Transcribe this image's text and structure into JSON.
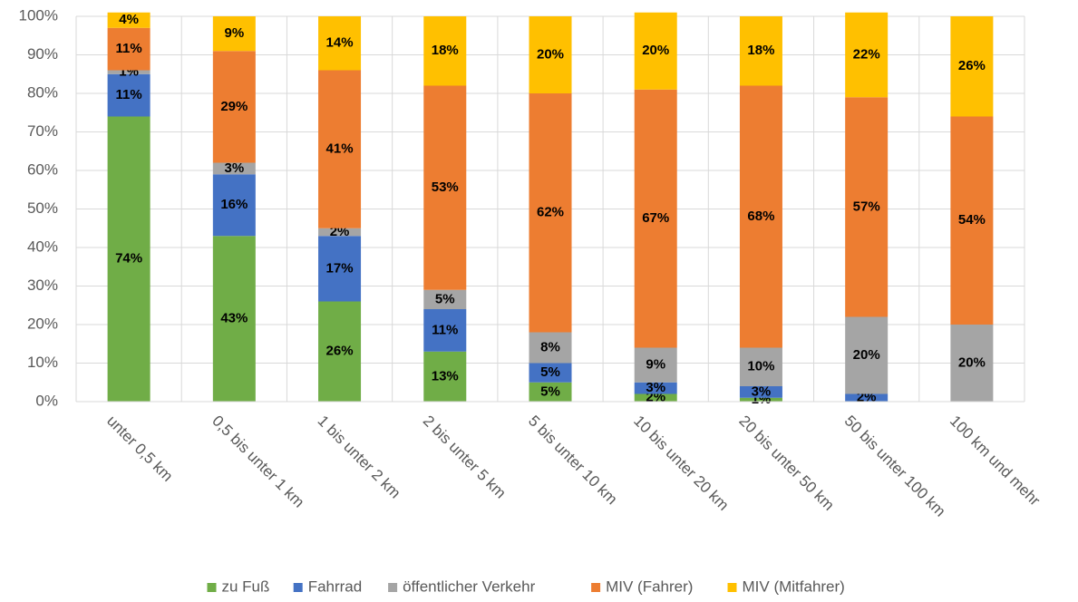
{
  "chart_data": {
    "type": "stacked_bar",
    "categories": [
      "unter 0,5 km",
      "0,5 bis unter 1 km",
      "1 bis unter 2 km",
      "2 bis unter 5 km",
      "5 bis unter 10 km",
      "10 bis unter 20 km",
      "20 bis unter 50 km",
      "50 bis unter 100 km",
      "100 km und mehr"
    ],
    "series": [
      {
        "name": "zu Fuß",
        "color": "#70ad47",
        "values": [
          74,
          43,
          26,
          13,
          5,
          2,
          1,
          null,
          null
        ],
        "value_labels": [
          "74%",
          "43%",
          "26%",
          "13%",
          "5%",
          "2%",
          "1%",
          null,
          null
        ]
      },
      {
        "name": "Fahrrad",
        "color": "#4472c4",
        "values": [
          11,
          16,
          17,
          11,
          5,
          3,
          3,
          2,
          null
        ],
        "value_labels": [
          "11%",
          "16%",
          "17%",
          "11%",
          "5%",
          "3%",
          "3%",
          "2%",
          null
        ]
      },
      {
        "name": "öffentlicher Verkehr",
        "color": "#a5a5a5",
        "values": [
          1,
          3,
          2,
          5,
          8,
          9,
          10,
          20,
          20
        ],
        "value_labels": [
          "1%",
          "3%",
          "2%",
          "5%",
          "8%",
          "9%",
          "10%",
          "20%",
          "20%"
        ]
      },
      {
        "name": "MIV (Fahrer)",
        "color": "#ed7d31",
        "values": [
          11,
          29,
          41,
          53,
          62,
          67,
          68,
          57,
          54
        ],
        "value_labels": [
          "11%",
          "29%",
          "41%",
          "53%",
          "62%",
          "67%",
          "68%",
          "57%",
          "54%"
        ]
      },
      {
        "name": "MIV (Mitfahrer)",
        "color": "#ffc000",
        "values": [
          4,
          9,
          14,
          18,
          20,
          20,
          18,
          22,
          26
        ],
        "value_labels": [
          "4%",
          "9%",
          "14%",
          "18%",
          "20%",
          "20%",
          "18%",
          "22%",
          "26%"
        ]
      }
    ],
    "ylim": [
      0,
      100
    ],
    "yticks": [
      {
        "value": 0,
        "label": "0%"
      },
      {
        "value": 10,
        "label": "10%"
      },
      {
        "value": 20,
        "label": "20%"
      },
      {
        "value": 30,
        "label": "30%"
      },
      {
        "value": 40,
        "label": "40%"
      },
      {
        "value": 50,
        "label": "50%"
      },
      {
        "value": 60,
        "label": "60%"
      },
      {
        "value": 70,
        "label": "70%"
      },
      {
        "value": 80,
        "label": "80%"
      },
      {
        "value": 90,
        "label": "90%"
      },
      {
        "value": 100,
        "label": "100%"
      }
    ],
    "grid": true,
    "legend": "bottom"
  }
}
